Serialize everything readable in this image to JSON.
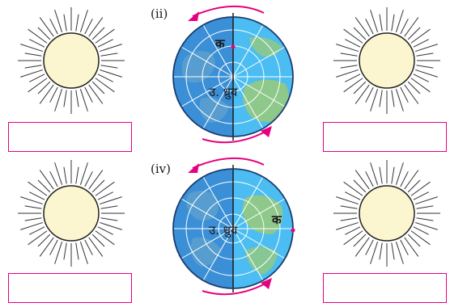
{
  "panels": [
    {
      "label": "(ii)",
      "pole_text": "उ. ध्रुव",
      "marker_text": "क"
    },
    {
      "label": "(iv)",
      "pole_text": "उ. ध्रुव",
      "marker_text": "क"
    }
  ],
  "colors": {
    "sun_fill": "#fbf6cf",
    "sun_rays": "#333333",
    "box_border": "#e6007e",
    "arrow": "#e6007e",
    "ocean_dark": "#3b8fd4",
    "ocean_light": "#49b8ee",
    "land": "#8ec88a"
  },
  "icons": [
    "sun-icon",
    "globe-icon",
    "rotation-arrow-icon"
  ]
}
